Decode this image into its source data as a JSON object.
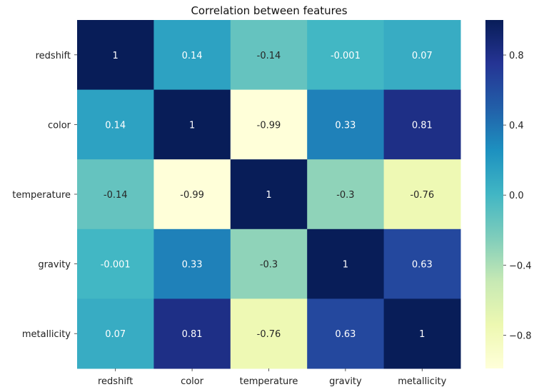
{
  "chart_data": {
    "type": "heatmap",
    "title": "Correlation between features",
    "x_labels": [
      "redshift",
      "color",
      "temperature",
      "gravity",
      "metallicity"
    ],
    "y_labels": [
      "redshift",
      "color",
      "temperature",
      "gravity",
      "metallicity"
    ],
    "values": [
      [
        1,
        0.14,
        -0.14,
        -0.001,
        0.07
      ],
      [
        0.14,
        1,
        -0.99,
        0.33,
        0.81
      ],
      [
        -0.14,
        -0.99,
        1,
        -0.3,
        -0.76
      ],
      [
        -0.001,
        0.33,
        -0.3,
        1,
        0.63
      ],
      [
        0.07,
        0.81,
        -0.76,
        0.63,
        1
      ]
    ],
    "annotations": [
      [
        "1",
        "0.14",
        "-0.14",
        "-0.001",
        "0.07"
      ],
      [
        "0.14",
        "1",
        "-0.99",
        "0.33",
        "0.81"
      ],
      [
        "-0.14",
        "-0.99",
        "1",
        "-0.3",
        "-0.76"
      ],
      [
        "-0.001",
        "0.33",
        "-0.3",
        "1",
        "0.63"
      ],
      [
        "0.07",
        "0.81",
        "-0.76",
        "0.63",
        "1"
      ]
    ],
    "colormap": "YlGnBu",
    "vmin": -0.99,
    "vmax": 1,
    "colorbar": {
      "ticks": [
        0.8,
        0.4,
        0.0,
        -0.4,
        -0.8
      ],
      "tick_labels": [
        "0.8",
        "0.4",
        "0.0",
        "−0.4",
        "−0.8"
      ],
      "placement": "right"
    }
  }
}
